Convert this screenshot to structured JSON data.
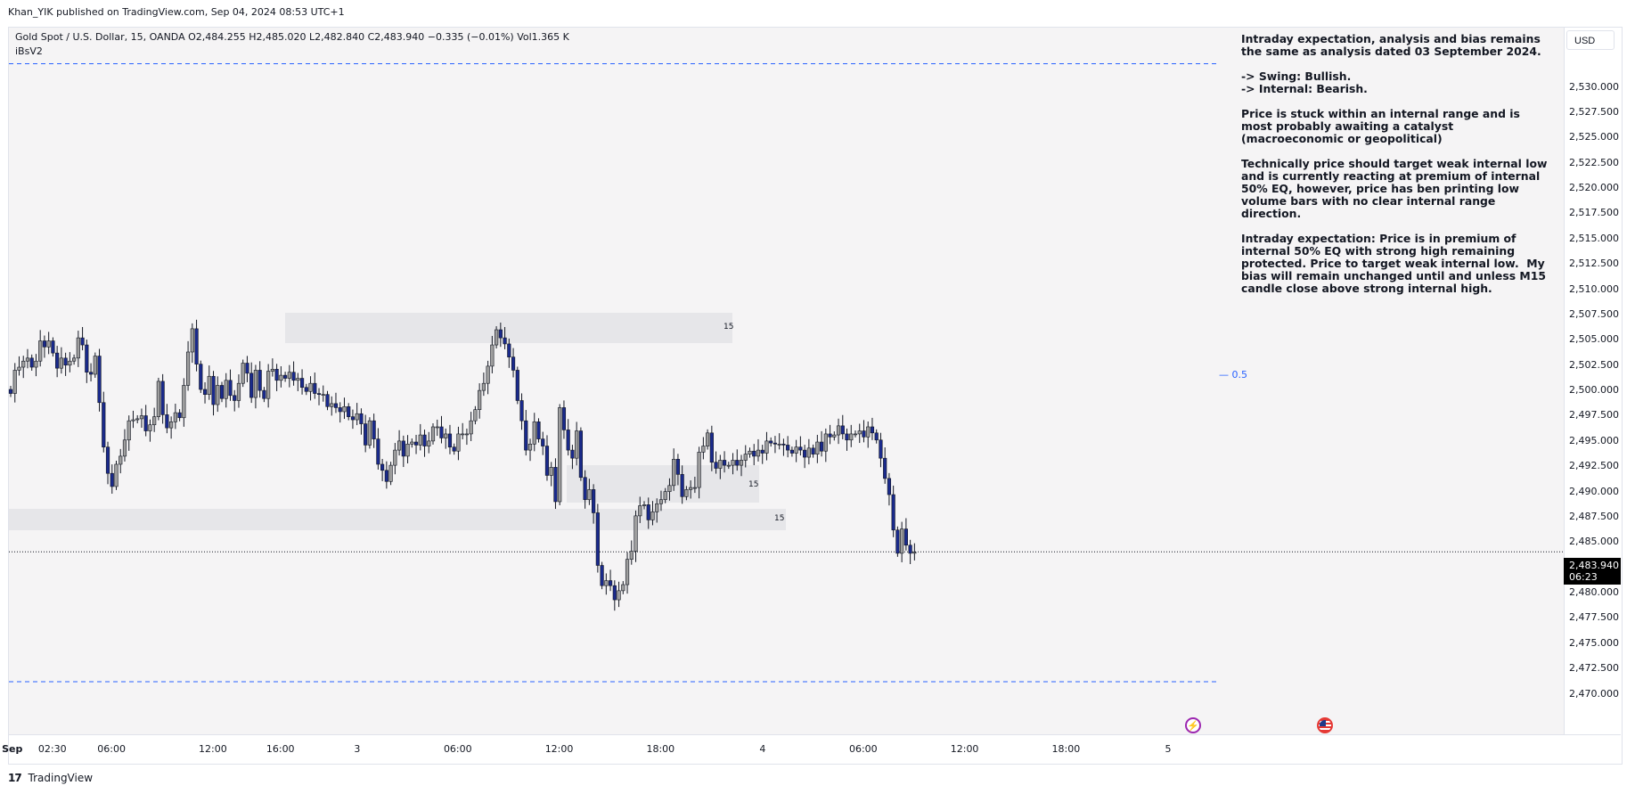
{
  "header": {
    "published_line": "Khan_YIK published on TradingView.com, Sep 04, 2024 08:53 UTC+1"
  },
  "legend": {
    "symbol_line": "Gold Spot / U.S. Dollar, 15, OANDA  O2,484.255  H2,485.020  L2,482.840  C2,483.940  −0.335 (−0.01%)  Vol1.365 K",
    "indicator": "iBsV2"
  },
  "currency": "USD",
  "analysis_text": "Intraday expectation, analysis and bias remains the same as analysis dated 03 September 2024.\n\n-> Swing: Bullish.\n-> Internal: Bearish.\n\nPrice is stuck within an internal range and is most probably awaiting a catalyst (macroeconomic or geopolitical)\n\nTechnically price should target weak internal low and is currently reacting at premium of internal 50% EQ, however, price has ben printing low volume bars with no clear internal range direction.\n\nIntraday expectation: Price is in premium of internal 50% EQ with strong high remaining protected. Price to target weak internal low.  My bias will remain unchanged until and unless M15 candle close above strong internal high.",
  "eq_label": "0.5",
  "zone_labels": [
    "15",
    "15",
    "15"
  ],
  "price_badge": {
    "price": "2,483.940",
    "countdown": "06:23"
  },
  "events": {
    "flash_icon": "lightning-icon",
    "flag_icon": "us-flag-icon"
  },
  "footer": {
    "logo_text": "17",
    "brand": "TradingView"
  },
  "colors": {
    "bull_body": "#9e9e9e",
    "bear_body": "#1a2a8c",
    "wick": "#131722",
    "zone": "#e6e6e9",
    "range_line": "#2962ff",
    "eq_label": "#2962ff"
  },
  "chart_data": {
    "type": "candlestick",
    "symbol": "Gold Spot / U.S. Dollar",
    "interval": "15",
    "y_ticks": [
      2530,
      2527.5,
      2525,
      2522.5,
      2520,
      2517.5,
      2515,
      2512.5,
      2510,
      2507.5,
      2505,
      2502.5,
      2500,
      2497.5,
      2495,
      2492.5,
      2490,
      2487.5,
      2485,
      2480,
      2477.5,
      2475,
      2472.5,
      2470
    ],
    "y_tick_labels": [
      "2,530.000",
      "2,527.500",
      "2,525.000",
      "2,522.500",
      "2,520.000",
      "2,517.500",
      "2,515.000",
      "2,512.500",
      "2,510.000",
      "2,507.500",
      "2,505.000",
      "2,502.500",
      "2,500.000",
      "2,497.500",
      "2,495.000",
      "2,492.500",
      "2,490.000",
      "2,487.500",
      "2,485.000",
      "2,480.000",
      "2,477.500",
      "2,475.000",
      "2,472.500",
      "2,470.000"
    ],
    "x_tick_labels": [
      "Sep",
      "02:30",
      "06:00",
      "12:00",
      "16:00",
      "3",
      "06:00",
      "12:00",
      "18:00",
      "4",
      "06:00",
      "12:00",
      "18:00",
      "5"
    ],
    "x_tick_index": [
      0,
      10,
      24,
      48,
      64,
      82,
      106,
      130,
      154,
      178,
      202,
      226,
      250,
      274
    ],
    "internal_range_high": 2532.2,
    "internal_range_low": 2471.1,
    "last_price": 2483.94,
    "closes": [
      2499.6,
      2501.9,
      2502.2,
      2502.8,
      2503.1,
      2502.2,
      2502.8,
      2504.8,
      2504.2,
      2504.8,
      2503.6,
      2502.1,
      2503.1,
      2502.4,
      2502.8,
      2503.1,
      2505.1,
      2504.4,
      2501.7,
      2501.5,
      2503.3,
      2498.7,
      2494.3,
      2491.7,
      2490.4,
      2492.6,
      2493.4,
      2495.0,
      2496.9,
      2497.0,
      2497.1,
      2497.4,
      2495.9,
      2496.5,
      2497.3,
      2500.8,
      2497.5,
      2496.2,
      2496.8,
      2497.7,
      2497.2,
      2500.4,
      2503.7,
      2506.0,
      2502.5,
      2500.0,
      2499.5,
      2501.3,
      2498.5,
      2500.4,
      2499.1,
      2500.9,
      2499.4,
      2498.9,
      2500.6,
      2502.6,
      2501.6,
      2499.2,
      2501.9,
      2499.9,
      2499.1,
      2501.8,
      2502.0,
      2500.9,
      2501.4,
      2501.1,
      2501.7,
      2500.9,
      2501.1,
      2500.2,
      2499.8,
      2500.6,
      2499.6,
      2499.5,
      2499.5,
      2498.3,
      2498.6,
      2498.2,
      2497.8,
      2498.3,
      2497.3,
      2497.0,
      2497.6,
      2496.6,
      2494.5,
      2496.9,
      2495.1,
      2492.6,
      2492.0,
      2490.9,
      2492.5,
      2494.0,
      2494.9,
      2493.4,
      2494.6,
      2494.8,
      2494.5,
      2495.5,
      2494.4,
      2494.9,
      2496.3,
      2496.3,
      2495.2,
      2495.6,
      2494.3,
      2493.9,
      2495.6,
      2495.6,
      2495.6,
      2496.9,
      2498.0,
      2499.9,
      2500.6,
      2502.3,
      2504.4,
      2505.9,
      2505.1,
      2504.5,
      2503.2,
      2501.9,
      2498.9,
      2496.9,
      2494.0,
      2494.6,
      2496.8,
      2495.1,
      2494.4,
      2491.5,
      2492.3,
      2488.9,
      2498.2,
      2496.0,
      2494.0,
      2493.2,
      2495.9,
      2491.3,
      2489.1,
      2490.1,
      2487.8,
      2482.6,
      2480.6,
      2481.1,
      2480.6,
      2479.2,
      2480.1,
      2480.7,
      2483.2,
      2484.0,
      2487.5,
      2488.5,
      2488.6,
      2487.1,
      2487.9,
      2488.7,
      2489.1,
      2489.9,
      2490.5,
      2493.1,
      2491.6,
      2489.4,
      2490.1,
      2490.3,
      2490.3,
      2493.8,
      2494.4,
      2495.7,
      2492.8,
      2492.2,
      2493.0,
      2492.5,
      2492.5,
      2493.0,
      2492.5,
      2493.0,
      2493.6,
      2493.9,
      2493.4,
      2494.0,
      2493.7,
      2494.9,
      2494.7,
      2494.6,
      2494.6,
      2494.5,
      2494.0,
      2493.7,
      2494.3,
      2494.0,
      2493.3,
      2494.2,
      2493.6,
      2494.8,
      2493.9,
      2495.6,
      2495.3,
      2495.5,
      2496.4,
      2495.6,
      2495.0,
      2495.6,
      2495.6,
      2495.9,
      2495.3,
      2496.3,
      2495.7,
      2495.0,
      2493.2,
      2491.2,
      2489.6,
      2486.1,
      2483.8,
      2486.2,
      2484.6,
      2483.8,
      2483.9
    ]
  }
}
